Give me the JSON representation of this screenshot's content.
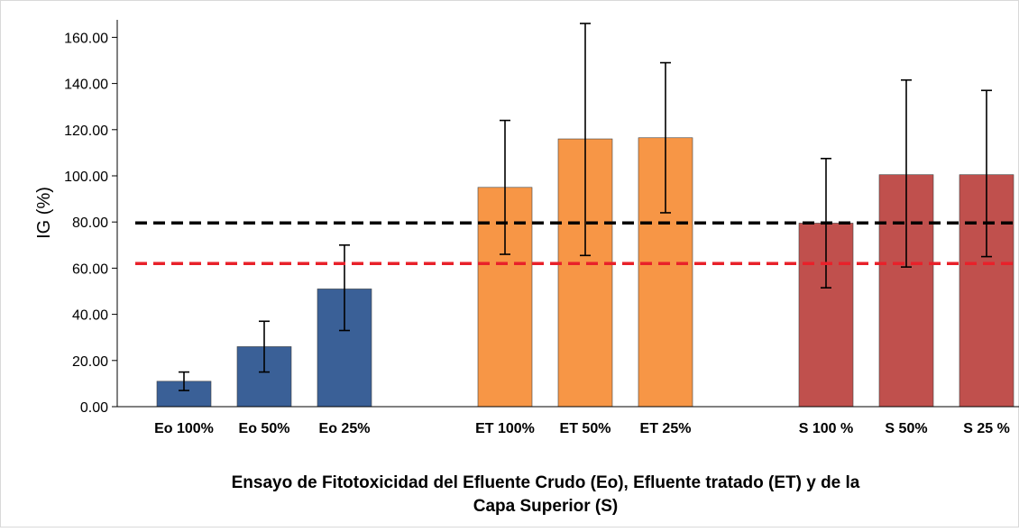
{
  "chart_data": {
    "type": "bar",
    "title": "",
    "xlabel_lines": [
      "Ensayo de Fitotoxicidad del Efluente Crudo (Eo), Efluente tratado (ET) y de la",
      "Capa Superior (S)"
    ],
    "ylabel": "IG (%)",
    "ylim": [
      0,
      166
    ],
    "yticks": [
      "0.00",
      "20.00",
      "40.00",
      "60.00",
      "80.00",
      "100.00",
      "120.00",
      "140.00",
      "160.00"
    ],
    "ytick_values": [
      0,
      20,
      40,
      60,
      80,
      100,
      120,
      140,
      160
    ],
    "grid": false,
    "legend": "none",
    "categories": [
      "Eo 100%",
      "Eo 50%",
      "Eo 25%",
      "ET 100%",
      "ET 50%",
      "ET 25%",
      "S 100 %",
      "S 50%",
      "S 25 %"
    ],
    "values": [
      11,
      26,
      51,
      95,
      116,
      116.5,
      79.5,
      100.5,
      100.5
    ],
    "error_low": [
      7,
      15,
      33,
      66,
      65.5,
      84,
      51.5,
      60.5,
      65
    ],
    "error_high": [
      15,
      37,
      70,
      124,
      167,
      149,
      107.5,
      141.5,
      137
    ],
    "groups": [
      {
        "color": "#3a6097",
        "indices": [
          0,
          1,
          2
        ]
      },
      {
        "color": "#f79646",
        "indices": [
          3,
          4,
          5
        ]
      },
      {
        "color": "#c0504d",
        "indices": [
          6,
          7,
          8
        ]
      }
    ],
    "reference_lines": [
      {
        "value": 79.6,
        "color": "#000000",
        "style": "dashed"
      },
      {
        "value": 62,
        "color": "#e8212a",
        "style": "dashed"
      }
    ]
  }
}
